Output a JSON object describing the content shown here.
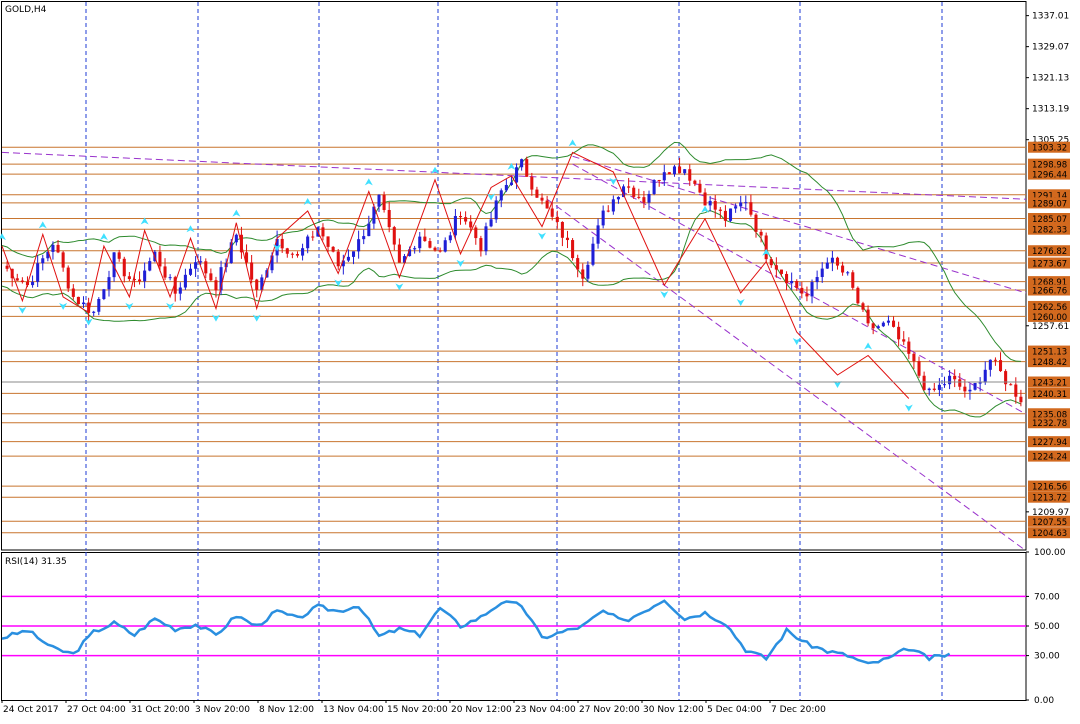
{
  "window": {
    "symbol_label": "GOLD,H4",
    "colors": {
      "background": "#ffffff",
      "grid": "#1f3bd6",
      "level_line": "#c8752f",
      "level_tag_bg": "#d2691e",
      "trendline": "#9932cc",
      "bands": "#2e8b2e",
      "bull_candle": "#1f1fd6",
      "bear_candle": "#e01010",
      "zigzag": "#e01010",
      "fractal": "#40e0ff",
      "rsi_line": "#2a8fe0",
      "rsi_level": "#ff00ff",
      "frame": "#000000"
    }
  },
  "price_axis": {
    "ticks": [
      "1337.01",
      "1329.07",
      "1321.13",
      "1313.19",
      "1305.25",
      "1257.61",
      "1209.97"
    ],
    "level_tags": [
      "1303.32",
      "1298.98",
      "1296.44",
      "1291.14",
      "1289.07",
      "1285.07",
      "1282.33",
      "1276.82",
      "1273.67",
      "1268.91",
      "1266.76",
      "1262.56",
      "1260.00",
      "1251.13",
      "1248.42",
      "1243.21",
      "1240.31",
      "1235.08",
      "1232.78",
      "1227.94",
      "1224.24",
      "1216.56",
      "1213.72",
      "1207.55",
      "1204.63"
    ]
  },
  "rsi": {
    "label": "RSI(14) 31.35",
    "axis_ticks": [
      "100.00",
      "70.00",
      "50.00",
      "30.00",
      "0.00"
    ],
    "levels": [
      70,
      50,
      30
    ]
  },
  "time_axis": {
    "labels": [
      "24 Oct 2017",
      "27 Oct 04:00",
      "31 Oct 20:00",
      "3 Nov 20:00",
      "8 Nov 12:00",
      "13 Nov 04:00",
      "15 Nov 20:00",
      "20 Nov 12:00",
      "23 Nov 04:00",
      "27 Nov 20:00",
      "30 Nov 12:00",
      "5 Dec 04:00",
      "7 Dec 20:00"
    ]
  },
  "chart_data": {
    "type": "candlestick",
    "symbol": "GOLD",
    "timeframe": "H4",
    "price_range": [
      1200.2,
      1340.5
    ],
    "close_path": [
      [
        0,
        1273
      ],
      [
        5,
        1268
      ],
      [
        10,
        1279
      ],
      [
        14,
        1265
      ],
      [
        18,
        1261
      ],
      [
        22,
        1275
      ],
      [
        26,
        1268
      ],
      [
        30,
        1276
      ],
      [
        34,
        1266
      ],
      [
        38,
        1275
      ],
      [
        42,
        1268
      ],
      [
        46,
        1281
      ],
      [
        50,
        1266
      ],
      [
        54,
        1280
      ],
      [
        58,
        1275
      ],
      [
        62,
        1283
      ],
      [
        66,
        1273
      ],
      [
        70,
        1279
      ],
      [
        74,
        1290
      ],
      [
        78,
        1273
      ],
      [
        82,
        1281
      ],
      [
        86,
        1276
      ],
      [
        90,
        1287
      ],
      [
        94,
        1278
      ],
      [
        98,
        1292
      ],
      [
        102,
        1299
      ],
      [
        106,
        1289
      ],
      [
        110,
        1281
      ],
      [
        114,
        1271
      ],
      [
        118,
        1286
      ],
      [
        122,
        1294
      ],
      [
        126,
        1290
      ],
      [
        130,
        1298
      ],
      [
        134,
        1298
      ],
      [
        138,
        1290
      ],
      [
        142,
        1285
      ],
      [
        146,
        1290
      ],
      [
        150,
        1276
      ],
      [
        154,
        1270
      ],
      [
        158,
        1265
      ],
      [
        162,
        1275
      ],
      [
        166,
        1270
      ],
      [
        170,
        1257
      ],
      [
        174,
        1258
      ],
      [
        178,
        1250
      ],
      [
        182,
        1240
      ],
      [
        186,
        1244
      ],
      [
        190,
        1240
      ],
      [
        194,
        1249
      ],
      [
        198,
        1242
      ],
      [
        200,
        1239
      ]
    ],
    "zigzag": [
      [
        0,
        1278
      ],
      [
        4,
        1264
      ],
      [
        8,
        1281
      ],
      [
        12,
        1265
      ],
      [
        17,
        1261
      ],
      [
        20,
        1278
      ],
      [
        25,
        1265
      ],
      [
        28,
        1282
      ],
      [
        33,
        1265
      ],
      [
        37,
        1280
      ],
      [
        42,
        1262
      ],
      [
        46,
        1284
      ],
      [
        50,
        1262
      ],
      [
        54,
        1280
      ],
      [
        60,
        1287
      ],
      [
        66,
        1271
      ],
      [
        72,
        1292
      ],
      [
        78,
        1270
      ],
      [
        85,
        1295
      ],
      [
        90,
        1276
      ],
      [
        96,
        1293
      ],
      [
        100,
        1296
      ],
      [
        106,
        1283
      ],
      [
        112,
        1302
      ],
      [
        120,
        1297
      ],
      [
        130,
        1268
      ],
      [
        138,
        1285
      ],
      [
        145,
        1266
      ],
      [
        150,
        1274
      ],
      [
        156,
        1256
      ],
      [
        164,
        1245
      ],
      [
        170,
        1250
      ],
      [
        178,
        1239
      ]
    ],
    "levels": [
      1303.32,
      1298.98,
      1296.44,
      1291.14,
      1289.07,
      1285.07,
      1282.33,
      1276.82,
      1273.67,
      1268.91,
      1266.76,
      1262.56,
      1260.0,
      1251.13,
      1248.42,
      1243.21,
      1240.31,
      1235.08,
      1232.78,
      1227.94,
      1224.24,
      1216.56,
      1213.72,
      1207.55,
      1204.63
    ],
    "trendlines": [
      [
        [
          0,
          1302
        ],
        [
          201,
          1290
        ]
      ],
      [
        [
          112,
          1301
        ],
        [
          201,
          1266
        ]
      ],
      [
        [
          112,
          1299
        ],
        [
          201,
          1235
        ]
      ],
      [
        [
          107,
          1290
        ],
        [
          201,
          1200
        ]
      ]
    ],
    "rsi": {
      "name": "RSI(14)",
      "current": 31.35,
      "levels": [
        70,
        50,
        30
      ],
      "range": [
        0,
        100
      ],
      "path": [
        [
          0,
          42
        ],
        [
          5,
          47
        ],
        [
          10,
          35
        ],
        [
          14,
          31
        ],
        [
          18,
          46
        ],
        [
          22,
          52
        ],
        [
          26,
          44
        ],
        [
          30,
          55
        ],
        [
          34,
          48
        ],
        [
          38,
          51
        ],
        [
          42,
          44
        ],
        [
          46,
          57
        ],
        [
          50,
          50
        ],
        [
          54,
          60
        ],
        [
          58,
          55
        ],
        [
          62,
          63
        ],
        [
          66,
          60
        ],
        [
          70,
          64
        ],
        [
          74,
          43
        ],
        [
          78,
          48
        ],
        [
          82,
          44
        ],
        [
          86,
          62
        ],
        [
          90,
          50
        ],
        [
          94,
          56
        ],
        [
          98,
          66
        ],
        [
          102,
          64
        ],
        [
          106,
          42
        ],
        [
          110,
          46
        ],
        [
          114,
          50
        ],
        [
          118,
          60
        ],
        [
          122,
          53
        ],
        [
          126,
          60
        ],
        [
          130,
          68
        ],
        [
          134,
          55
        ],
        [
          138,
          59
        ],
        [
          142,
          52
        ],
        [
          146,
          34
        ],
        [
          150,
          28
        ],
        [
          154,
          47
        ],
        [
          158,
          38
        ],
        [
          162,
          33
        ],
        [
          166,
          30
        ],
        [
          170,
          24
        ],
        [
          174,
          28
        ],
        [
          178,
          35
        ],
        [
          182,
          28
        ],
        [
          186,
          31
        ]
      ]
    }
  }
}
